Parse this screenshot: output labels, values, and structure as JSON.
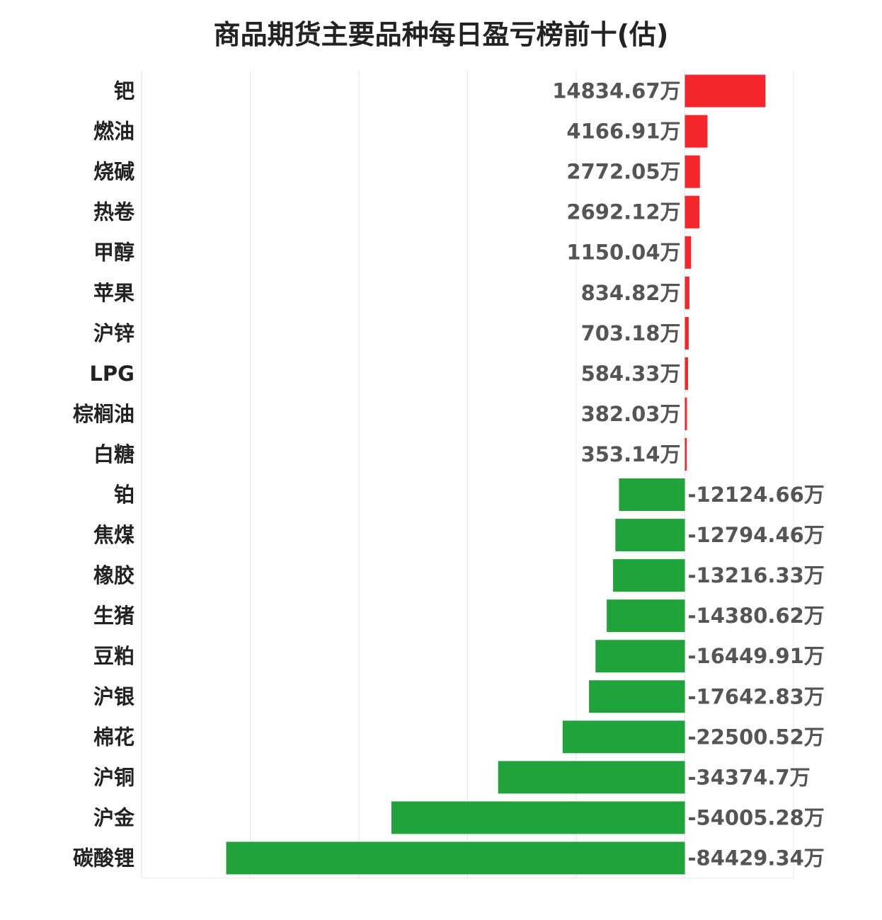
{
  "chart_data": {
    "type": "bar",
    "orientation": "horizontal",
    "title": "商品期货主要品种每日盈亏榜前十(估)",
    "unit_suffix": "万",
    "categories": [
      "钯",
      "燃油",
      "烧碱",
      "热卷",
      "甲醇",
      "苹果",
      "沪锌",
      "LPG",
      "棕榈油",
      "白糖",
      "铂",
      "焦煤",
      "橡胶",
      "生猪",
      "豆粕",
      "沪银",
      "棉花",
      "沪铜",
      "沪金",
      "碳酸锂"
    ],
    "values": [
      14834.67,
      4166.91,
      2772.05,
      2692.12,
      1150.04,
      834.82,
      703.18,
      584.33,
      382.03,
      353.14,
      -12124.66,
      -12794.46,
      -13216.33,
      -14380.62,
      -16449.91,
      -17642.83,
      -22500.52,
      -34374.7,
      -54005.28,
      -84429.34
    ],
    "value_labels": [
      "14834.67万",
      "4166.91万",
      "2772.05万",
      "2692.12万",
      "1150.04万",
      "834.82万",
      "703.18万",
      "584.33万",
      "382.03万",
      "353.14万",
      "-12124.66万",
      "-12794.46万",
      "-13216.33万",
      "-14380.62万",
      "-16449.91万",
      "-17642.83万",
      "-22500.52万",
      "-34374.7万",
      "-54005.28万",
      "-84429.34万"
    ],
    "xlim": [
      -100000,
      20000
    ],
    "grid": true,
    "colors": {
      "positive": "#f5262b",
      "negative": "#21a33c"
    }
  }
}
